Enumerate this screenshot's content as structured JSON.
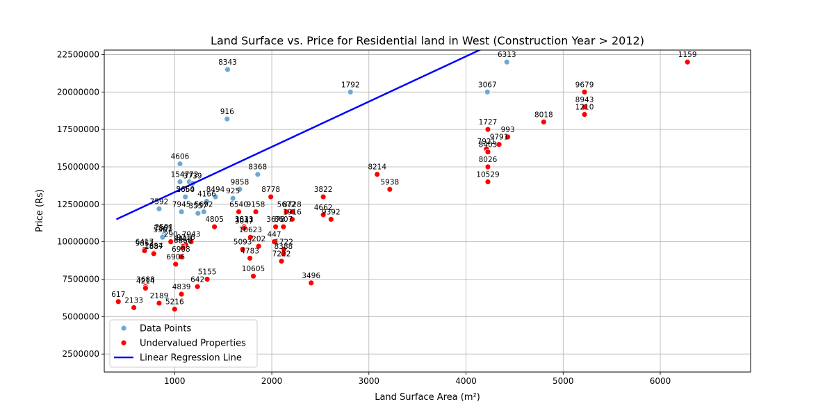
{
  "chart_data": {
    "type": "scatter",
    "title": "Land Surface vs. Price for Residential land in West (Construction Year > 2012)",
    "xlabel": "Land Surface Area (m²)",
    "ylabel": "Price (Rs)",
    "xlim": [
      275,
      6930
    ],
    "ylim": [
      1300000,
      22800000
    ],
    "x_ticks": [
      1000,
      2000,
      3000,
      4000,
      5000,
      6000
    ],
    "y_ticks": [
      2500000,
      5000000,
      7500000,
      10000000,
      12500000,
      15000000,
      17500000,
      20000000,
      22500000
    ],
    "grid": true,
    "legend_position": "lower-left",
    "colors": {
      "data_points": "#6fa8d2",
      "undervalued": "#ff0000",
      "regression": "#0000ff",
      "grid": "#b0b0b0"
    },
    "legend": [
      {
        "label": "Data Points",
        "kind": "dot",
        "color": "#6fa8d2"
      },
      {
        "label": "Undervalued Properties",
        "kind": "dot",
        "color": "#ff0000"
      },
      {
        "label": "Linear Regression Line",
        "kind": "line",
        "color": "#0000ff"
      }
    ],
    "regression_line": {
      "x": [
        400,
        4370
      ],
      "y": [
        11500000,
        23500000
      ]
    },
    "series": [
      {
        "name": "Data Points",
        "points": [
          {
            "x": 1545,
            "y": 21500000,
            "label": "8343"
          },
          {
            "x": 2810,
            "y": 20000000,
            "label": "1792"
          },
          {
            "x": 1540,
            "y": 18200000,
            "label": "916"
          },
          {
            "x": 4420,
            "y": 22000000,
            "label": "6313"
          },
          {
            "x": 4220,
            "y": 20000000,
            "label": "3067"
          },
          {
            "x": 1055,
            "y": 15200000,
            "label": "4606"
          },
          {
            "x": 1055,
            "y": 14000000,
            "label": "1547"
          },
          {
            "x": 1150,
            "y": 14000000,
            "label": "4772"
          },
          {
            "x": 1185,
            "y": 13900000,
            "label": "3739"
          },
          {
            "x": 1855,
            "y": 14500000,
            "label": "8368"
          },
          {
            "x": 1110,
            "y": 13000000,
            "label": "2650"
          },
          {
            "x": 1110,
            "y": 13000000,
            "label": "5664"
          },
          {
            "x": 1420,
            "y": 13000000,
            "label": "8494"
          },
          {
            "x": 1670,
            "y": 13500000,
            "label": "9858"
          },
          {
            "x": 1600,
            "y": 12900000,
            "label": "925"
          },
          {
            "x": 840,
            "y": 12200000,
            "label": "7592"
          },
          {
            "x": 1070,
            "y": 12000000,
            "label": "7945"
          },
          {
            "x": 1240,
            "y": 11900000,
            "label": "3557"
          },
          {
            "x": 1300,
            "y": 12000000,
            "label": "5692"
          },
          {
            "x": 1330,
            "y": 12700000,
            "label": "4166"
          },
          {
            "x": 890,
            "y": 10500000,
            "label": "2591"
          },
          {
            "x": 880,
            "y": 10400000,
            "label": "7861"
          },
          {
            "x": 875,
            "y": 10300000,
            "label": "5367"
          }
        ]
      },
      {
        "name": "Undervalued Properties",
        "points": [
          {
            "x": 6280,
            "y": 22000000,
            "label": "1159"
          },
          {
            "x": 5220,
            "y": 20000000,
            "label": "9679"
          },
          {
            "x": 5220,
            "y": 19000000,
            "label": "8943"
          },
          {
            "x": 5220,
            "y": 18500000,
            "label": "1210"
          },
          {
            "x": 4800,
            "y": 18000000,
            "label": "8018"
          },
          {
            "x": 4225,
            "y": 17500000,
            "label": "1727"
          },
          {
            "x": 4430,
            "y": 17000000,
            "label": "993"
          },
          {
            "x": 4340,
            "y": 16500000,
            "label": "9791"
          },
          {
            "x": 4210,
            "y": 16200000,
            "label": "7921"
          },
          {
            "x": 4225,
            "y": 16000000,
            "label": "8403"
          },
          {
            "x": 4225,
            "y": 15000000,
            "label": "8026"
          },
          {
            "x": 4225,
            "y": 14000000,
            "label": "10529"
          },
          {
            "x": 3085,
            "y": 14500000,
            "label": "8214"
          },
          {
            "x": 3215,
            "y": 13500000,
            "label": "5938"
          },
          {
            "x": 2530,
            "y": 13000000,
            "label": "3822"
          },
          {
            "x": 1990,
            "y": 13000000,
            "label": "8778"
          },
          {
            "x": 1660,
            "y": 12000000,
            "label": "6540"
          },
          {
            "x": 1835,
            "y": 12000000,
            "label": "9158"
          },
          {
            "x": 2150,
            "y": 12000000,
            "label": "5672"
          },
          {
            "x": 2210,
            "y": 12000000,
            "label": "8728"
          },
          {
            "x": 2210,
            "y": 11500000,
            "label": "1916"
          },
          {
            "x": 2530,
            "y": 11800000,
            "label": "4662"
          },
          {
            "x": 2610,
            "y": 11500000,
            "label": "9392"
          },
          {
            "x": 1715,
            "y": 11000000,
            "label": "3613"
          },
          {
            "x": 1715,
            "y": 11000000,
            "label": "1831"
          },
          {
            "x": 1715,
            "y": 10900000,
            "label": "3047"
          },
          {
            "x": 2040,
            "y": 11000000,
            "label": "3678"
          },
          {
            "x": 2120,
            "y": 11000000,
            "label": "8607"
          },
          {
            "x": 1410,
            "y": 11000000,
            "label": "4805"
          },
          {
            "x": 1780,
            "y": 10300000,
            "label": "10623"
          },
          {
            "x": 2025,
            "y": 10000000,
            "label": "447"
          },
          {
            "x": 1865,
            "y": 9700000,
            "label": "202"
          },
          {
            "x": 2125,
            "y": 9500000,
            "label": "1722"
          },
          {
            "x": 1700,
            "y": 9500000,
            "label": "5093"
          },
          {
            "x": 2120,
            "y": 9200000,
            "label": "8388"
          },
          {
            "x": 2100,
            "y": 8700000,
            "label": "7222"
          },
          {
            "x": 1775,
            "y": 8900000,
            "label": "4783"
          },
          {
            "x": 1810,
            "y": 7700000,
            "label": "10605"
          },
          {
            "x": 2405,
            "y": 7250000,
            "label": "3496"
          },
          {
            "x": 1170,
            "y": 10000000,
            "label": "7943"
          },
          {
            "x": 1115,
            "y": 9800000,
            "label": "9216"
          },
          {
            "x": 1085,
            "y": 9700000,
            "label": "9213"
          },
          {
            "x": 960,
            "y": 10000000,
            "label": "290"
          },
          {
            "x": 690,
            "y": 9500000,
            "label": "6417"
          },
          {
            "x": 690,
            "y": 9400000,
            "label": "9852"
          },
          {
            "x": 785,
            "y": 9250000,
            "label": "1654"
          },
          {
            "x": 785,
            "y": 9200000,
            "label": "1887"
          },
          {
            "x": 1085,
            "y": 9600000,
            "label": "6860"
          },
          {
            "x": 1065,
            "y": 9000000,
            "label": "6908"
          },
          {
            "x": 1010,
            "y": 8500000,
            "label": "6906"
          },
          {
            "x": 1335,
            "y": 7500000,
            "label": "5155"
          },
          {
            "x": 1235,
            "y": 7000000,
            "label": "642"
          },
          {
            "x": 700,
            "y": 7000000,
            "label": "3688"
          },
          {
            "x": 700,
            "y": 6900000,
            "label": "4214"
          },
          {
            "x": 1070,
            "y": 6500000,
            "label": "4839"
          },
          {
            "x": 420,
            "y": 6000000,
            "label": "617"
          },
          {
            "x": 840,
            "y": 5900000,
            "label": "2189"
          },
          {
            "x": 580,
            "y": 5600000,
            "label": "2133"
          },
          {
            "x": 1000,
            "y": 5500000,
            "label": "5216"
          }
        ]
      }
    ]
  }
}
